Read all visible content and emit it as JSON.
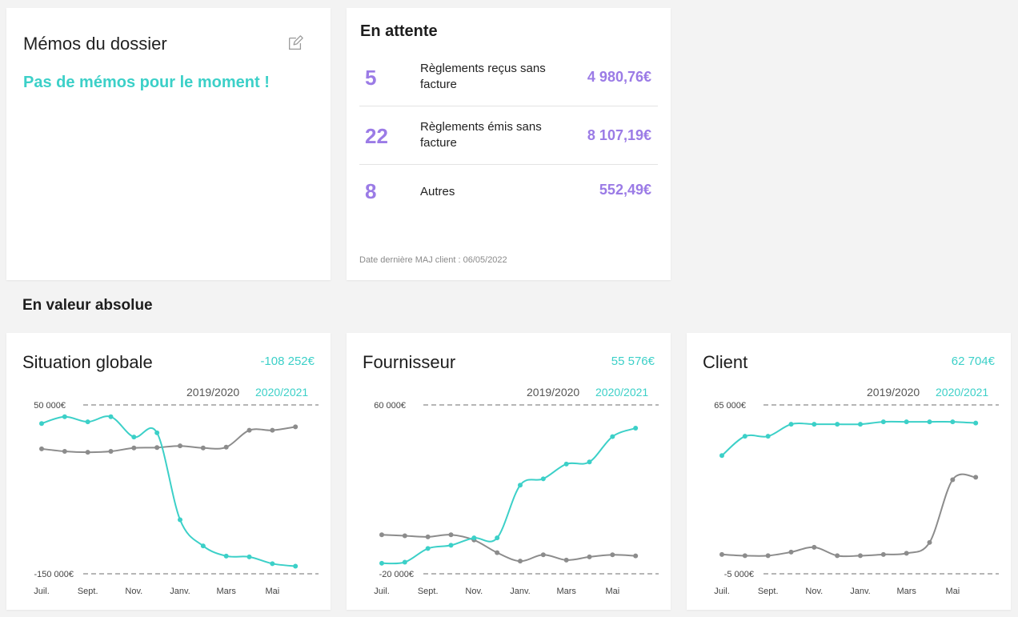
{
  "memos": {
    "title": "Mémos du dossier",
    "empty_text": "Pas de mémos pour le moment !",
    "edit_icon": "edit-icon"
  },
  "pending": {
    "title": "En attente",
    "rows": [
      {
        "count": "5",
        "label": "Règlements reçus sans facture",
        "amount": "4 980,76€"
      },
      {
        "count": "22",
        "label": "Règlements émis sans facture",
        "amount": "8 107,19€"
      },
      {
        "count": "8",
        "label": "Autres",
        "amount": "552,49€"
      }
    ],
    "update_text": "Date dernière MAJ client : 06/05/2022"
  },
  "section": {
    "title": "En valeur absolue"
  },
  "colors": {
    "current": "#3cd0c8",
    "previous": "#8c8c8c",
    "accent_purple": "#9b7be6"
  },
  "chart_data": [
    {
      "type": "line",
      "title": "Situation globale",
      "total": "-108 252€",
      "ymax_label": "50 000€",
      "ymin_label": "-150 000€",
      "ylim": [
        -150000,
        50000
      ],
      "x_tick_labels": [
        "Juil.",
        "Sept.",
        "Nov.",
        "Janv.",
        "Mars",
        "Mai"
      ],
      "x": [
        "Juil.",
        "Août",
        "Sept.",
        "Oct.",
        "Nov.",
        "Déc.",
        "Janv.",
        "Févr.",
        "Mars",
        "Avr.",
        "Mai",
        "Juin"
      ],
      "series": [
        {
          "name": "2019/2020",
          "values": [
            -2000,
            -5000,
            -6000,
            -5000,
            -1000,
            -500,
            1500,
            -1000,
            0,
            20000,
            20000,
            24000
          ]
        },
        {
          "name": "2020/2021",
          "values": [
            28000,
            36000,
            30000,
            36000,
            12000,
            17000,
            -86000,
            -117000,
            -129000,
            -130000,
            -138000,
            -141000
          ]
        }
      ]
    },
    {
      "type": "line",
      "title": "Fournisseur",
      "total": "55 576€",
      "ymax_label": "60 000€",
      "ymin_label": "-20 000€",
      "ylim": [
        -20000,
        60000
      ],
      "x_tick_labels": [
        "Juil.",
        "Sept.",
        "Nov.",
        "Janv.",
        "Mars",
        "Mai"
      ],
      "x": [
        "Juil.",
        "Août",
        "Sept.",
        "Oct.",
        "Nov.",
        "Déc.",
        "Janv.",
        "Févr.",
        "Mars",
        "Avr.",
        "Mai",
        "Juin"
      ],
      "series": [
        {
          "name": "2019/2020",
          "values": [
            -1500,
            -2000,
            -2500,
            -1500,
            -4000,
            -10000,
            -14000,
            -11000,
            -13500,
            -12000,
            -11000,
            -11500
          ]
        },
        {
          "name": "2020/2021",
          "values": [
            -15000,
            -14500,
            -8000,
            -6500,
            -3000,
            -3000,
            22000,
            25000,
            32000,
            33000,
            45000,
            49000
          ]
        }
      ]
    },
    {
      "type": "line",
      "title": "Client",
      "total": "62 704€",
      "ymax_label": "65 000€",
      "ymin_label": "-5 000€",
      "ylim": [
        -5000,
        65000
      ],
      "x_tick_labels": [
        "Juil.",
        "Sept.",
        "Nov.",
        "Janv.",
        "Mars",
        "Mai"
      ],
      "x": [
        "Juil.",
        "Août",
        "Sept.",
        "Oct.",
        "Nov.",
        "Déc.",
        "Janv.",
        "Févr.",
        "Mars",
        "Avr.",
        "Mai",
        "Juin"
      ],
      "series": [
        {
          "name": "2019/2020",
          "values": [
            3000,
            2500,
            2500,
            4000,
            6000,
            2500,
            2500,
            3000,
            3500,
            8000,
            34000,
            35000
          ]
        },
        {
          "name": "2020/2021",
          "values": [
            44000,
            52000,
            52000,
            57000,
            57000,
            57000,
            57000,
            58000,
            58000,
            58000,
            58000,
            57500
          ]
        }
      ]
    }
  ]
}
